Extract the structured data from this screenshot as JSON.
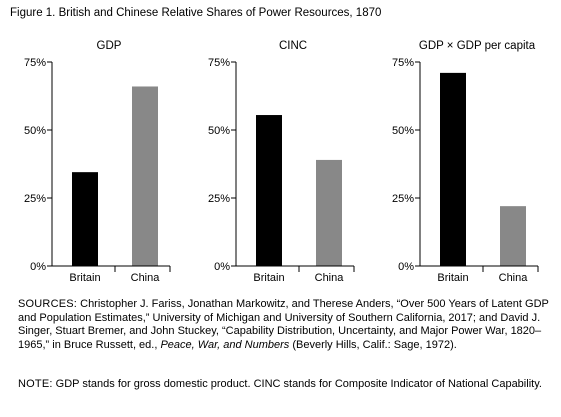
{
  "figure": {
    "title": "Figure 1.  British and Chinese Relative Shares of Power Resources, 1870"
  },
  "colors": {
    "britain": "#000000",
    "china": "#888888",
    "axis": "#000000"
  },
  "chart_data": [
    {
      "type": "bar",
      "title": "GDP",
      "categories": [
        "Britain",
        "China"
      ],
      "values": [
        34.5,
        66
      ],
      "ylim": [
        0,
        75
      ],
      "yticks": [
        "0%",
        "25%",
        "50%",
        "75%"
      ],
      "ytick_values": [
        0,
        25,
        50,
        75
      ],
      "grid": false
    },
    {
      "type": "bar",
      "title": "CINC",
      "categories": [
        "Britain",
        "China"
      ],
      "values": [
        55.5,
        39
      ],
      "ylim": [
        0,
        75
      ],
      "yticks": [
        "0%",
        "25%",
        "50%",
        "75%"
      ],
      "ytick_values": [
        0,
        25,
        50,
        75
      ],
      "grid": false
    },
    {
      "type": "bar",
      "title": "GDP × GDP per capita",
      "categories": [
        "Britain",
        "China"
      ],
      "values": [
        71,
        22
      ],
      "ylim": [
        0,
        75
      ],
      "yticks": [
        "0%",
        "25%",
        "50%",
        "75%"
      ],
      "ytick_values": [
        0,
        25,
        50,
        75
      ],
      "grid": false
    }
  ],
  "sources": {
    "label": "SOURCES:",
    "text_1": " Christopher J. Fariss, Jonathan Markowitz, and Therese Anders, “Over 500 Years of Latent GDP and Population Estimates,” University of Michigan and University of Southern California, 2017; and David J. Singer, Stuart Bremer, and John Stuckey, “Capability Distribution, Uncertainty, and Major Power War, 1820–1965,” in Bruce Russett, ed., ",
    "italic": "Peace, War, and Numbers",
    "text_2": " (Beverly Hills, Calif.: Sage, 1972)."
  },
  "note": {
    "label": "NOTE:",
    "text": " GDP stands for gross domestic product. CINC stands for Composite Indicator of National Capability."
  }
}
